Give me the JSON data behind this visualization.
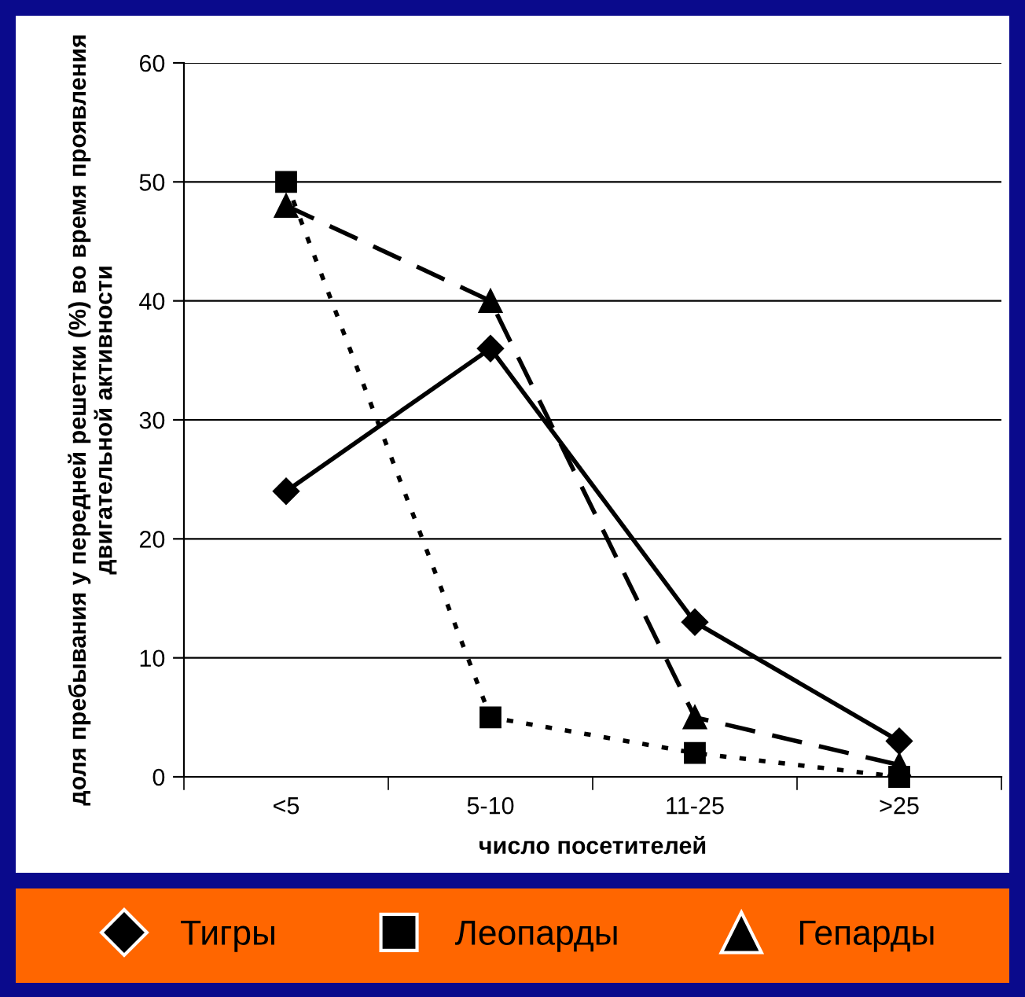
{
  "chart_data": {
    "type": "line",
    "xlabel": "число посетителей",
    "ylabel": "доля пребывания у передней решетки (%) во время проявления двигательной активности",
    "categories": [
      "<5",
      "5-10",
      "11-25",
      ">25"
    ],
    "series": [
      {
        "name": "Тигры",
        "color": "#000000",
        "marker": "diamond",
        "line_style": "solid",
        "values": [
          24,
          36,
          13,
          3
        ]
      },
      {
        "name": "Леопарды",
        "color": "#000000",
        "marker": "square",
        "line_style": "dotted",
        "values": [
          50,
          5,
          2,
          0
        ]
      },
      {
        "name": "Гепарды",
        "color": "#000000",
        "marker": "triangle",
        "line_style": "dashed",
        "values": [
          48,
          40,
          5,
          1
        ]
      }
    ],
    "ylim": [
      0,
      60
    ],
    "yticks": [
      0,
      10,
      20,
      30,
      40,
      50,
      60
    ],
    "grid": "y",
    "legend": "bottom"
  }
}
